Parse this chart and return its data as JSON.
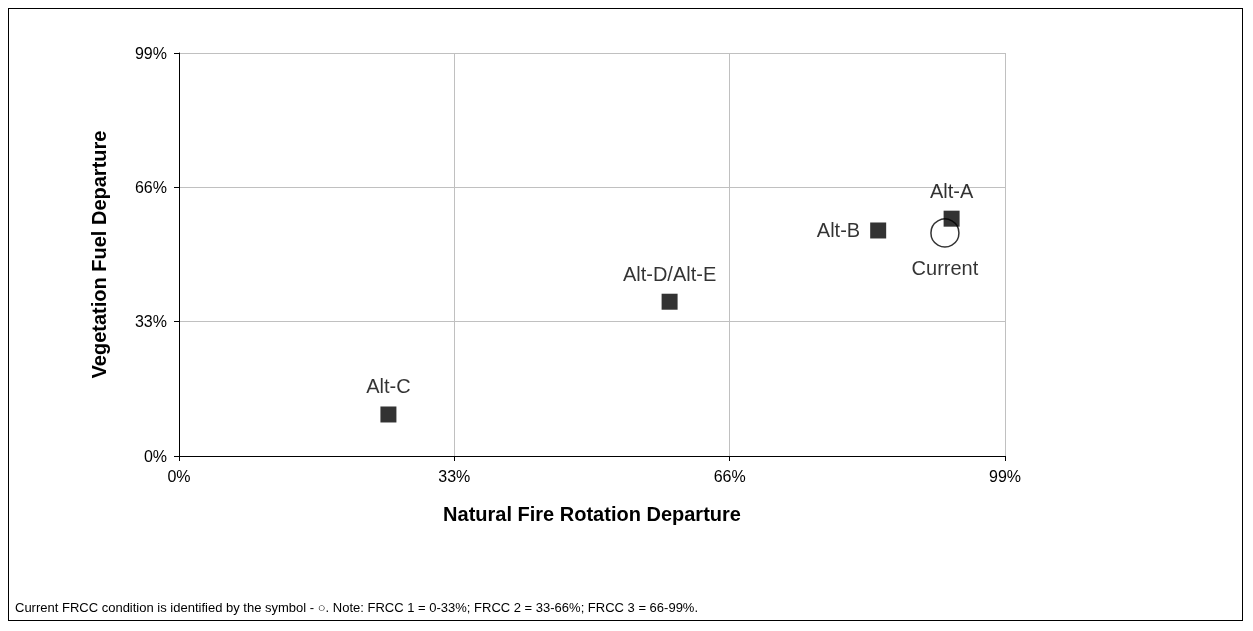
{
  "chart_data": {
    "type": "scatter",
    "xlabel": "Natural Fire Rotation Departure",
    "ylabel": "Vegetation Fuel Departure",
    "xlim": [
      0,
      99
    ],
    "xticks": [
      {
        "value": 0,
        "label": "0%"
      },
      {
        "value": 33,
        "label": "33%"
      },
      {
        "value": 66,
        "label": "66%"
      },
      {
        "value": 99,
        "label": "99%"
      }
    ],
    "ylim": [
      0,
      99
    ],
    "yticks": [
      {
        "value": 0,
        "label": "0%"
      },
      {
        "value": 33,
        "label": "33%"
      },
      {
        "value": 66,
        "label": "66%"
      },
      {
        "value": 99,
        "label": "99%"
      }
    ],
    "grid": true,
    "legend": false,
    "series": [
      {
        "name": "Alt-C",
        "color": "#000000",
        "marker": "square",
        "x": [
          25.1
        ],
        "values": [
          10.2
        ]
      },
      {
        "name": "Alt-D/Alt-E",
        "color": "#000000",
        "marker": "square",
        "x": [
          58.8
        ],
        "values": [
          37.9
        ]
      },
      {
        "name": "Alt-B",
        "color": "#000000",
        "marker": "square",
        "x": [
          83.8
        ],
        "values": [
          55.4
        ]
      },
      {
        "name": "Alt-A",
        "color": "#000000",
        "marker": "square",
        "x": [
          92.6
        ],
        "values": [
          58.3
        ]
      },
      {
        "name": "Current",
        "color": "#000000",
        "marker": "circle",
        "x": [
          91.8
        ],
        "values": [
          54.8
        ]
      }
    ],
    "annotations": [
      "Current FRCC condition is identified by the symbol - ○. Note: FRCC 1 = 0-33%; FRCC 2 = 33-66%; FRCC 3 = 66-99%."
    ]
  }
}
